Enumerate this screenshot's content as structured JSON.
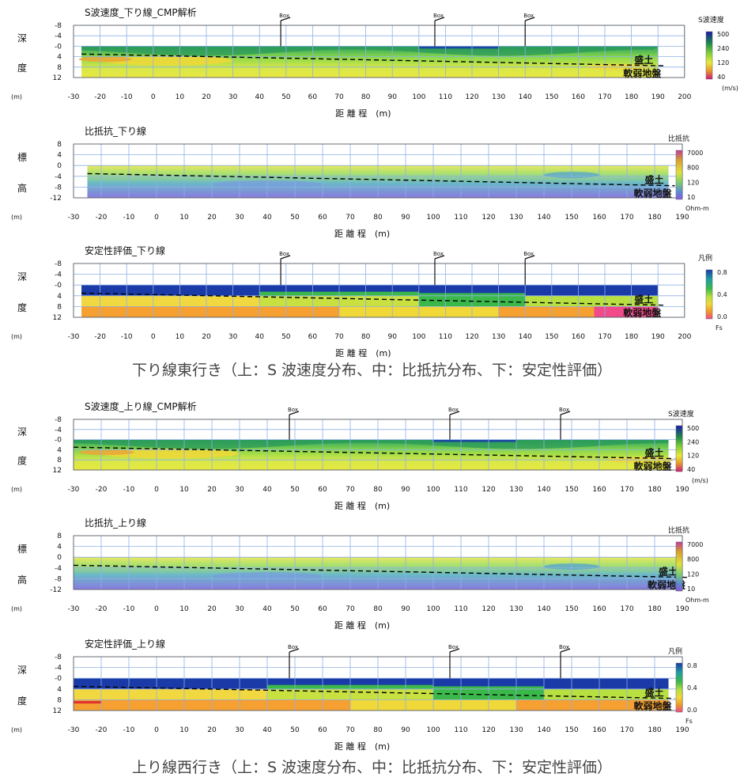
{
  "captions": {
    "east": "下り線東行き（上：S 波速度分布、中：比抵抗分布、下：安定性評価）",
    "west": "上り線西行き（上：S 波速度分布、中：比抵抗分布、下：安定性評価）"
  },
  "common": {
    "xlabel": "距 離 程　(m)",
    "unit_m": "(m)",
    "layer_top": "盛土",
    "layer_bottom": "軟弱地盤",
    "box_label": "Box"
  },
  "chart_data": [
    {
      "id": "east-vs",
      "type": "heatmap",
      "kind": "vs",
      "title": "S波速度_下り線_CMP解析",
      "ylabel_chars": [
        "深",
        "度"
      ],
      "y_ticks": [
        "-8",
        "-4",
        "-0",
        "4",
        "8",
        "12"
      ],
      "ylim": [
        -8,
        12
      ],
      "x_ticks": [
        -30,
        -20,
        -10,
        0,
        10,
        20,
        30,
        40,
        50,
        60,
        70,
        80,
        90,
        100,
        110,
        120,
        130,
        140,
        150,
        160,
        170,
        180,
        190,
        200
      ],
      "xlim": [
        -30,
        200
      ],
      "data_x": [
        -27,
        190
      ],
      "boxes": [
        48,
        106,
        140
      ],
      "legend": {
        "title": "S波速度",
        "labels": [
          "500",
          "240",
          "120",
          "40"
        ],
        "unit": "(m/s)"
      }
    },
    {
      "id": "east-res",
      "type": "heatmap",
      "kind": "res",
      "title": "比抵抗_下り線",
      "ylabel_chars": [
        "標",
        "高"
      ],
      "y_ticks": [
        "8",
        "4",
        "0",
        "-4",
        "-8",
        "-12"
      ],
      "ylim": [
        8,
        -12
      ],
      "x_ticks": [
        -30,
        -20,
        -10,
        0,
        10,
        20,
        30,
        40,
        50,
        60,
        70,
        80,
        90,
        100,
        110,
        120,
        130,
        140,
        150,
        160,
        170,
        180,
        190
      ],
      "xlim": [
        -30,
        190
      ],
      "data_x": [
        -25,
        185
      ],
      "boxes": [],
      "legend": {
        "title": "比抵抗",
        "labels": [
          "7000",
          "800",
          "120",
          "10"
        ],
        "unit": "Ohm-m"
      }
    },
    {
      "id": "east-fs",
      "type": "heatmap",
      "kind": "fs",
      "title": "安定性評価_下り線",
      "ylabel_chars": [
        "深",
        "度"
      ],
      "y_ticks": [
        "-8",
        "-4",
        "-0",
        "4",
        "8",
        "12"
      ],
      "ylim": [
        -8,
        12
      ],
      "x_ticks": [
        -30,
        -20,
        -10,
        0,
        10,
        20,
        30,
        40,
        50,
        60,
        70,
        80,
        90,
        100,
        110,
        120,
        130,
        140,
        150,
        160,
        170,
        180,
        190,
        200
      ],
      "xlim": [
        -30,
        200
      ],
      "data_x": [
        -27,
        190
      ],
      "boxes": [
        48,
        106,
        140
      ],
      "legend": {
        "title": "凡例",
        "labels": [
          "0.8",
          "0.4",
          "0.0"
        ],
        "unit": "Fs"
      }
    },
    {
      "id": "west-vs",
      "type": "heatmap",
      "kind": "vs",
      "title": "S波速度_上り線_CMP解析",
      "ylabel_chars": [
        "深",
        "度"
      ],
      "y_ticks": [
        "-8",
        "-4",
        "-0",
        "4",
        "8",
        "12"
      ],
      "ylim": [
        -8,
        12
      ],
      "x_ticks": [
        -30,
        -20,
        -10,
        0,
        10,
        20,
        30,
        40,
        50,
        60,
        70,
        80,
        90,
        100,
        110,
        120,
        130,
        140,
        150,
        160,
        170,
        180,
        190
      ],
      "xlim": [
        -30,
        190
      ],
      "data_x": [
        -30,
        185
      ],
      "boxes": [
        48,
        106,
        146
      ],
      "legend": {
        "title": "S波速度",
        "labels": [
          "500",
          "240",
          "120",
          "40"
        ],
        "unit": "(m/s)"
      }
    },
    {
      "id": "west-res",
      "type": "heatmap",
      "kind": "res",
      "title": "比抵抗_上り線",
      "ylabel_chars": [
        "標",
        "高"
      ],
      "y_ticks": [
        "8",
        "4",
        "0",
        "-4",
        "-8",
        "-12"
      ],
      "ylim": [
        8,
        -12
      ],
      "x_ticks": [
        -30,
        -20,
        -10,
        0,
        10,
        20,
        30,
        40,
        50,
        60,
        70,
        80,
        90,
        100,
        110,
        120,
        130,
        140,
        150,
        160,
        170,
        180,
        190
      ],
      "xlim": [
        -30,
        190
      ],
      "data_x": [
        -30,
        190
      ],
      "boxes": [],
      "legend": {
        "title": "比抵抗",
        "labels": [
          "7000",
          "800",
          "120",
          "10"
        ],
        "unit": "Ohm-m"
      }
    },
    {
      "id": "west-fs",
      "type": "heatmap",
      "kind": "fs",
      "title": "安定性評価_上り線",
      "ylabel_chars": [
        "深",
        "度"
      ],
      "y_ticks": [
        "-8",
        "-4",
        "-0",
        "4",
        "8",
        "12"
      ],
      "ylim": [
        -8,
        12
      ],
      "x_ticks": [
        -30,
        -20,
        -10,
        0,
        10,
        20,
        30,
        40,
        50,
        60,
        70,
        80,
        90,
        100,
        110,
        120,
        130,
        140,
        150,
        160,
        170,
        180,
        190
      ],
      "xlim": [
        -30,
        190
      ],
      "data_x": [
        -30,
        185
      ],
      "boxes": [
        48,
        106,
        146
      ],
      "legend": {
        "title": "凡例",
        "labels": [
          "0.8",
          "0.4",
          "0.0"
        ],
        "unit": "Fs"
      }
    }
  ],
  "colors": {
    "axis": "#4a5a9a",
    "grid": "#8fb0e8",
    "frame": "#000000",
    "vs_scale": [
      "#1a1aa8",
      "#1f8a4a",
      "#7fcf3a",
      "#e8e83a",
      "#e89a2a",
      "#cc1a7a"
    ],
    "res_scale": [
      "#c03aa0",
      "#d8a030",
      "#e0e040",
      "#7fcf6a",
      "#5a8ad8",
      "#8a5ad8"
    ],
    "fs_scale": [
      "#1a3aa8",
      "#1fa0a0",
      "#3ab84a",
      "#b8e040",
      "#f0d838",
      "#f09a2a",
      "#f04a8a"
    ]
  }
}
